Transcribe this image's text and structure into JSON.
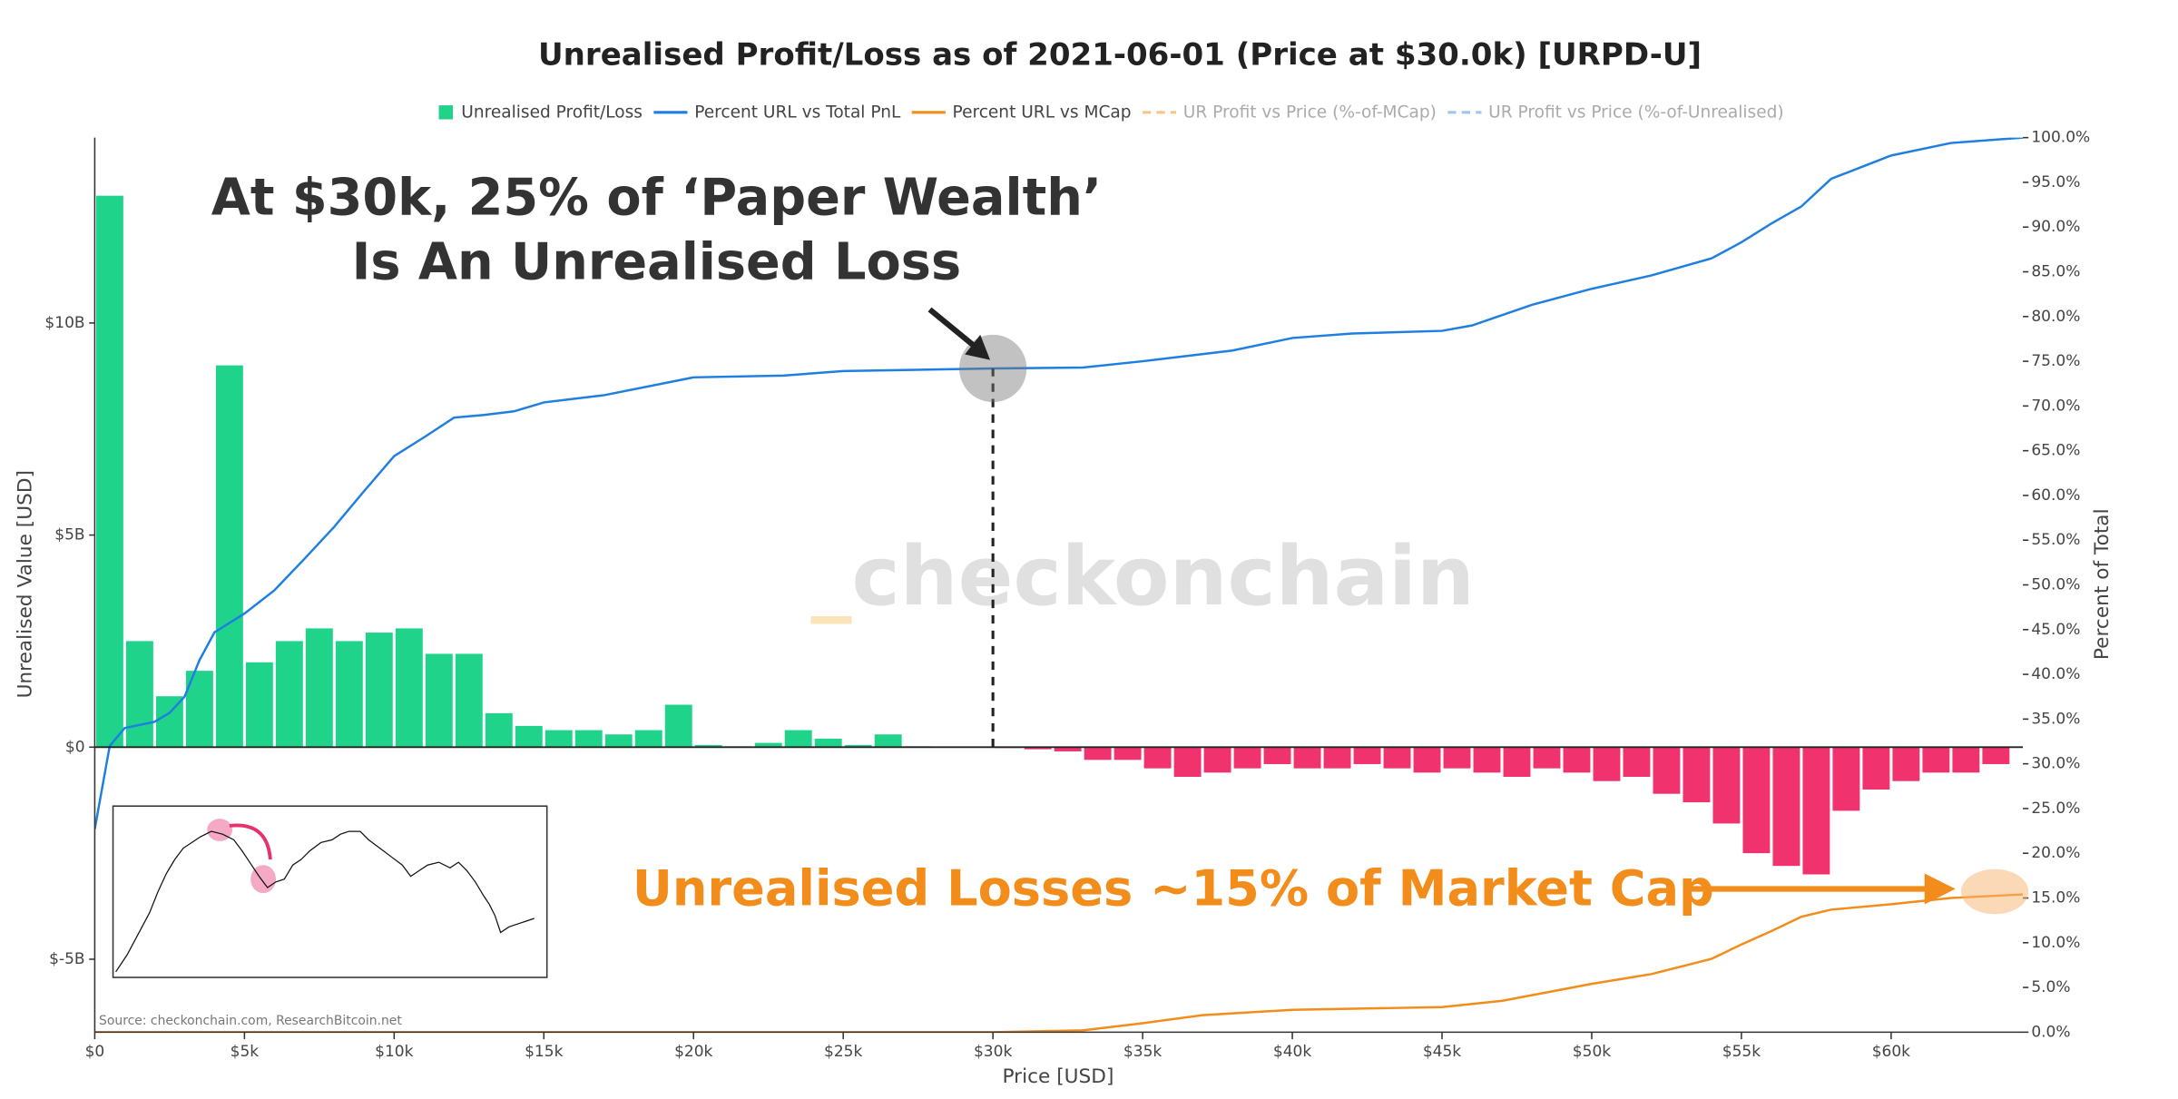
{
  "chart_data": {
    "type": "combo",
    "title": "Unrealised Profit/Loss as of 2021-06-01 (Price at $30.0k) [URPD-U]",
    "x_label": "Price [USD]",
    "y_label": "Unrealised Value [USD]",
    "y2_label": "Percent of Total",
    "xlim": [
      0,
      64400
    ],
    "ylim": [
      -6.72,
      14.37
    ],
    "y2lim": [
      0,
      100
    ],
    "xticks": [
      {
        "value": 0,
        "label": "$0"
      },
      {
        "value": 5000,
        "label": "$5k"
      },
      {
        "value": 10000,
        "label": "$10k"
      },
      {
        "value": 15000,
        "label": "$15k"
      },
      {
        "value": 20000,
        "label": "$20k"
      },
      {
        "value": 25000,
        "label": "$25k"
      },
      {
        "value": 30000,
        "label": "$30k"
      },
      {
        "value": 35000,
        "label": "$35k"
      },
      {
        "value": 40000,
        "label": "$40k"
      },
      {
        "value": 45000,
        "label": "$45k"
      },
      {
        "value": 50000,
        "label": "$50k"
      },
      {
        "value": 55000,
        "label": "$55k"
      },
      {
        "value": 60000,
        "label": "$60k"
      }
    ],
    "yticks": [
      {
        "value": -5,
        "label": "$-5B"
      },
      {
        "value": 0,
        "label": "$0"
      },
      {
        "value": 5,
        "label": "$5B"
      },
      {
        "value": 10,
        "label": "$10B"
      }
    ],
    "y2ticks": [
      {
        "value": 0,
        "label": "0.0%"
      },
      {
        "value": 5,
        "label": "5.0%"
      },
      {
        "value": 10,
        "label": "10.0%"
      },
      {
        "value": 15,
        "label": "15.0%"
      },
      {
        "value": 20,
        "label": "20.0%"
      },
      {
        "value": 25,
        "label": "25.0%"
      },
      {
        "value": 30,
        "label": "30.0%"
      },
      {
        "value": 35,
        "label": "35.0%"
      },
      {
        "value": 40,
        "label": "40.0%"
      },
      {
        "value": 45,
        "label": "45.0%"
      },
      {
        "value": 50,
        "label": "50.0%"
      },
      {
        "value": 55,
        "label": "55.0%"
      },
      {
        "value": 60,
        "label": "60.0%"
      },
      {
        "value": 65,
        "label": "65.0%"
      },
      {
        "value": 70,
        "label": "70.0%"
      },
      {
        "value": 75,
        "label": "75.0%"
      },
      {
        "value": 80,
        "label": "80.0%"
      },
      {
        "value": 85,
        "label": "85.0%"
      },
      {
        "value": 90,
        "label": "90.0%"
      },
      {
        "value": 95,
        "label": "95.0%"
      },
      {
        "value": 100,
        "label": "100.0%"
      }
    ],
    "series": [
      {
        "name": "Unrealised Profit/Loss",
        "type": "histogram",
        "color": "#1fd38b",
        "negative_color": "#f0326e",
        "bins": [
          0,
          1000,
          2000,
          3000,
          4000,
          5000,
          6000,
          7000,
          8000,
          9000,
          10000,
          11000,
          12000,
          13000,
          14000,
          15000,
          16000,
          17000,
          18000,
          19000,
          20000,
          21000,
          22000,
          23000,
          24000,
          25000,
          26000,
          27000,
          28000,
          29000,
          30000,
          31000,
          32000,
          33000,
          34000,
          35000,
          36000,
          37000,
          38000,
          39000,
          40000,
          41000,
          42000,
          43000,
          44000,
          45000,
          46000,
          47000,
          48000,
          49000,
          50000,
          51000,
          52000,
          53000,
          54000,
          55000,
          56000,
          57000,
          58000,
          59000,
          60000,
          61000,
          62000,
          63000,
          64000
        ],
        "values": [
          13,
          2.5,
          1.2,
          1.8,
          9,
          2,
          2.5,
          2.8,
          2.5,
          2.7,
          2.8,
          2.2,
          2.2,
          0.8,
          0.5,
          0.4,
          0.4,
          0.3,
          0.4,
          1.0,
          0.05,
          0.02,
          0.1,
          0.4,
          0.2,
          0.05,
          0.3,
          0.02,
          0,
          0,
          -0.02,
          -0.05,
          -0.1,
          -0.3,
          -0.3,
          -0.5,
          -0.7,
          -0.6,
          -0.5,
          -0.4,
          -0.5,
          -0.5,
          -0.4,
          -0.5,
          -0.6,
          -0.5,
          -0.6,
          -0.7,
          -0.5,
          -0.6,
          -0.8,
          -0.7,
          -1.1,
          -1.3,
          -1.8,
          -2.5,
          -2.8,
          -3.0,
          -1.5,
          -1.0,
          -0.8,
          -0.6,
          -0.6,
          -0.4
        ]
      },
      {
        "name": "Percent URL vs Total PnL",
        "type": "line",
        "axis": "y2",
        "color": "#1f7fe0",
        "x": [
          0,
          500,
          1000,
          2000,
          2500,
          3000,
          3500,
          4000,
          5000,
          6000,
          7000,
          8000,
          9000,
          10000,
          11000,
          12000,
          13000,
          14000,
          15000,
          17000,
          20000,
          23000,
          25000,
          30000,
          33000,
          35000,
          38000,
          40000,
          42000,
          45000,
          46000,
          48000,
          50000,
          52000,
          54000,
          55000,
          56000,
          57000,
          58000,
          59000,
          60000,
          62000,
          64400
        ],
        "values": [
          22.7,
          32,
          34,
          34.7,
          35.7,
          37.5,
          41.6,
          44.7,
          46.8,
          49.4,
          52.9,
          56.5,
          60.5,
          64.4,
          66.5,
          68.7,
          69,
          69.4,
          70.4,
          71.2,
          73.2,
          73.4,
          73.9,
          74.2,
          74.3,
          75,
          76.2,
          77.6,
          78.1,
          78.4,
          79,
          81.3,
          83.1,
          84.6,
          86.5,
          88.3,
          90.4,
          92.3,
          95.4,
          96.7,
          98,
          99.4,
          100
        ]
      },
      {
        "name": "Percent URL vs MCap",
        "type": "line",
        "axis": "y2",
        "color": "#f28c1a",
        "x": [
          0,
          30000,
          33000,
          35000,
          37000,
          40000,
          45000,
          47000,
          50000,
          52000,
          54000,
          55000,
          56000,
          57000,
          58000,
          60000,
          62000,
          64400
        ],
        "values": [
          0,
          0,
          0.2,
          1,
          1.9,
          2.5,
          2.8,
          3.5,
          5.4,
          6.5,
          8.2,
          9.8,
          11.3,
          12.9,
          13.7,
          14.3,
          15,
          15.4
        ]
      },
      {
        "name": "UR Profit vs Price (%-of-MCap)",
        "type": "line",
        "axis": "y2",
        "color": "#f5c58a",
        "dash": true,
        "x": [],
        "values": []
      },
      {
        "name": "UR Profit vs Price (%-of-Unrealised)",
        "type": "line",
        "axis": "y2",
        "color": "#9cc7f0",
        "dash": true,
        "x": [],
        "values": []
      }
    ],
    "reference_x": 30000,
    "annotations": [
      "At $30k, 25% of ‘Paper Wealth’",
      "Is An Unrealised Loss",
      "Unrealised Losses ~15% of Market Cap"
    ],
    "watermark": "checkonchain",
    "source": "Source: checkonchain.com, ResearchBitcoin.net"
  }
}
